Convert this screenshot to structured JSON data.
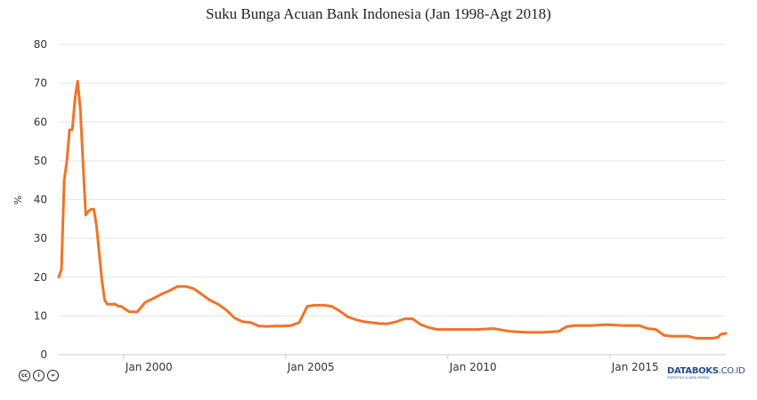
{
  "chart_data": {
    "type": "line",
    "title": "Suku Bunga Acuan Bank Indonesia (Jan 1998-Agt 2018)",
    "xlabel": "",
    "ylabel": "%",
    "ylim": [
      0,
      80
    ],
    "yticks": [
      0,
      10,
      20,
      30,
      40,
      50,
      60,
      70,
      80
    ],
    "xticks": [
      "Jan 2000",
      "Jan 2005",
      "Jan 2010",
      "Jan 2015"
    ],
    "grid": true,
    "legend": "none",
    "color": "#f07427",
    "series": [
      {
        "name": "Suku Bunga Acuan",
        "x": [
          "1998-01",
          "1998-02",
          "1998-03",
          "1998-04",
          "1998-05",
          "1998-06",
          "1998-07",
          "1998-08",
          "1998-09",
          "1998-10",
          "1998-11",
          "1998-12",
          "1999-01",
          "1999-02",
          "1999-03",
          "1999-04",
          "1999-05",
          "1999-06",
          "1999-07",
          "1999-08",
          "1999-09",
          "1999-10",
          "1999-11",
          "1999-12",
          "2000-03",
          "2000-06",
          "2000-09",
          "2000-12",
          "2001-03",
          "2001-06",
          "2001-09",
          "2001-12",
          "2002-03",
          "2002-06",
          "2002-09",
          "2002-12",
          "2003-03",
          "2003-06",
          "2003-09",
          "2003-12",
          "2004-03",
          "2004-06",
          "2004-09",
          "2004-12",
          "2005-03",
          "2005-06",
          "2005-09",
          "2005-12",
          "2006-03",
          "2006-06",
          "2006-09",
          "2006-12",
          "2007-03",
          "2007-06",
          "2007-09",
          "2007-12",
          "2008-03",
          "2008-06",
          "2008-09",
          "2008-12",
          "2009-03",
          "2009-06",
          "2009-09",
          "2009-12",
          "2010-06",
          "2010-12",
          "2011-06",
          "2011-12",
          "2012-06",
          "2012-12",
          "2013-06",
          "2013-09",
          "2013-12",
          "2014-06",
          "2014-12",
          "2015-06",
          "2015-12",
          "2016-03",
          "2016-06",
          "2016-09",
          "2016-12",
          "2017-06",
          "2017-09",
          "2017-12",
          "2018-03",
          "2018-05",
          "2018-06",
          "2018-08"
        ],
        "values": [
          20,
          22,
          45,
          50,
          58,
          58,
          66,
          70.5,
          63,
          49,
          36,
          37,
          37.5,
          37.5,
          33,
          26,
          19,
          14,
          13,
          13,
          13,
          13,
          12.5,
          12.5,
          11.1,
          11,
          13.5,
          14.5,
          15.6,
          16.5,
          17.6,
          17.6,
          17,
          15.5,
          14,
          13,
          11.5,
          9.5,
          8.5,
          8.3,
          7.4,
          7.3,
          7.4,
          7.4,
          7.5,
          8.3,
          12.5,
          12.75,
          12.75,
          12.5,
          11.25,
          9.75,
          9,
          8.5,
          8.25,
          8,
          8,
          8.5,
          9.25,
          9.25,
          7.75,
          7,
          6.5,
          6.5,
          6.5,
          6.5,
          6.75,
          6,
          5.75,
          5.75,
          6,
          7.25,
          7.5,
          7.5,
          7.75,
          7.5,
          7.5,
          6.75,
          6.5,
          5,
          4.75,
          4.75,
          4.25,
          4.25,
          4.25,
          4.5,
          5.25,
          5.5
        ]
      }
    ]
  },
  "header": {
    "title": "Suku Bunga Acuan Bank Indonesia (Jan 1998-Agt 2018)"
  },
  "axes": {
    "y_label": "%",
    "y_ticks": [
      "0",
      "10",
      "20",
      "30",
      "40",
      "50",
      "60",
      "70",
      "80"
    ],
    "x_ticks": [
      "Jan 2000",
      "Jan 2005",
      "Jan 2010",
      "Jan 2015"
    ]
  },
  "footer": {
    "license_icons": [
      "cc-icon",
      "by-icon",
      "nd-icon"
    ],
    "license_glyphs": [
      "cc",
      "i",
      "="
    ],
    "logo_main": "DATABOKS",
    "logo_suffix": ".CO.ID",
    "logo_tagline": "STATISTICS & DATA PORTAL"
  }
}
